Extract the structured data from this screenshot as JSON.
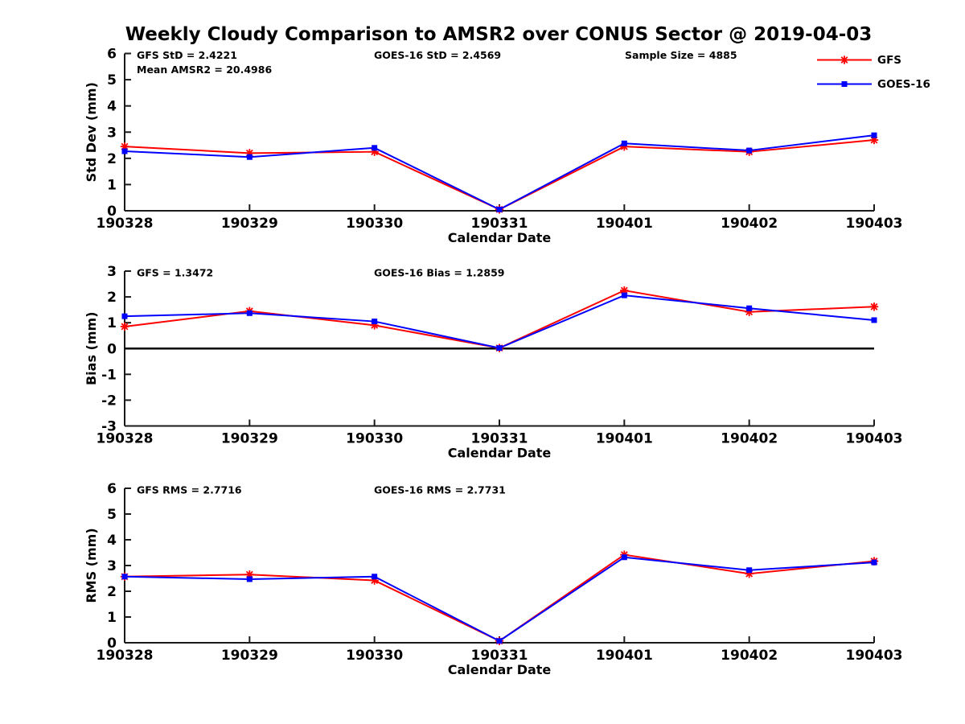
{
  "title": "Weekly Cloudy Comparison to AMSR2 over CONUS Sector @ 2019-04-03",
  "xlabel": "Calendar Date",
  "categories": [
    "190328",
    "190329",
    "190330",
    "190331",
    "190401",
    "190402",
    "190403"
  ],
  "colors": {
    "gfs": "#ff0000",
    "goes16": "#0000ff",
    "axis": "#1a1a1a",
    "text": "#000000",
    "zero_line": "#000000"
  },
  "legend": [
    {
      "label": "GFS",
      "color": "#ff0000",
      "marker": "asterisk"
    },
    {
      "label": "GOES-16",
      "color": "#0000ff",
      "marker": "square"
    }
  ],
  "chart_data": [
    {
      "type": "line",
      "ylabel": "Std Dev (mm)",
      "xlabel": "Calendar Date",
      "ylim": [
        0,
        6
      ],
      "yticks": [
        0,
        1,
        2,
        3,
        4,
        5,
        6
      ],
      "grid": false,
      "zero_line": false,
      "annotations": [
        {
          "text": "GFS StD = 2.4221",
          "col": 0,
          "row": 0
        },
        {
          "text": "Mean AMSR2 = 20.4986",
          "col": 0,
          "row": 1
        },
        {
          "text": "GOES-16 StD = 2.4569",
          "col": 1,
          "row": 0
        },
        {
          "text": "Sample Size = 4885",
          "col": 2,
          "row": 0
        }
      ],
      "series": [
        {
          "name": "GFS",
          "color": "#ff0000",
          "marker": "asterisk",
          "values": [
            2.45,
            2.2,
            2.25,
            0.05,
            2.45,
            2.25,
            2.7
          ]
        },
        {
          "name": "GOES-16",
          "color": "#0000ff",
          "marker": "square",
          "values": [
            2.27,
            2.05,
            2.4,
            0.05,
            2.57,
            2.3,
            2.88
          ]
        }
      ]
    },
    {
      "type": "line",
      "ylabel": "Bias (mm)",
      "xlabel": "Calendar Date",
      "ylim": [
        -3,
        3
      ],
      "yticks": [
        -3,
        -2,
        -1,
        0,
        1,
        2,
        3
      ],
      "grid": false,
      "zero_line": true,
      "annotations": [
        {
          "text": "GFS = 1.3472",
          "col": 0,
          "row": 0
        },
        {
          "text": "GOES-16 Bias  = 1.2859",
          "col": 1,
          "row": 0
        }
      ],
      "series": [
        {
          "name": "GFS",
          "color": "#ff0000",
          "marker": "asterisk",
          "values": [
            0.85,
            1.45,
            0.9,
            0.02,
            2.25,
            1.42,
            1.62
          ]
        },
        {
          "name": "GOES-16",
          "color": "#0000ff",
          "marker": "square",
          "values": [
            1.25,
            1.37,
            1.05,
            0.02,
            2.06,
            1.56,
            1.1
          ]
        }
      ]
    },
    {
      "type": "line",
      "ylabel": "RMS (mm)",
      "xlabel": "Calendar Date",
      "ylim": [
        0,
        6
      ],
      "yticks": [
        0,
        1,
        2,
        3,
        4,
        5,
        6
      ],
      "grid": false,
      "zero_line": false,
      "annotations": [
        {
          "text": "GFS RMS = 2.7716",
          "col": 0,
          "row": 0
        },
        {
          "text": "GOES-16 RMS = 2.7731",
          "col": 1,
          "row": 0
        }
      ],
      "series": [
        {
          "name": "GFS",
          "color": "#ff0000",
          "marker": "asterisk",
          "values": [
            2.57,
            2.65,
            2.42,
            0.07,
            3.42,
            2.68,
            3.17
          ]
        },
        {
          "name": "GOES-16",
          "color": "#0000ff",
          "marker": "square",
          "values": [
            2.57,
            2.47,
            2.57,
            0.07,
            3.32,
            2.82,
            3.12
          ]
        }
      ]
    }
  ]
}
